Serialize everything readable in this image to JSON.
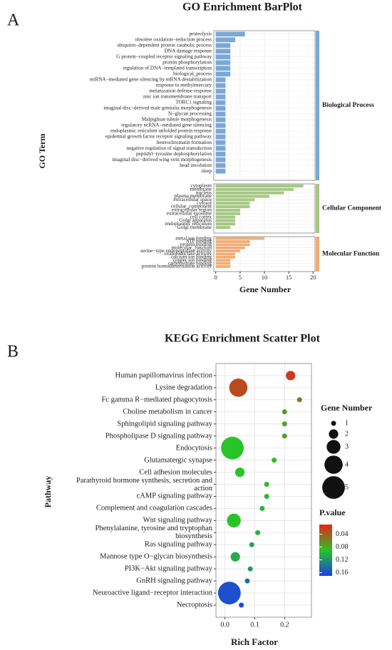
{
  "chart_data": [
    {
      "type": "bar",
      "orientation": "horizontal",
      "panel": "A",
      "title": "GO Enrichment BarPlot",
      "x_label": "Gene Number",
      "y_label": "GO Term",
      "xlim": [
        -0.4,
        20.4
      ],
      "xticks": [
        0,
        5,
        10,
        15,
        20
      ],
      "grid": true,
      "groups": [
        {
          "name": "Biological Process",
          "color": "#7ba7d7",
          "categories": [
            "proteolysis",
            "obsolete oxidation−reduction process",
            "ubiquitin−dependent protein catabolic process",
            "DNA damage response",
            "G protein−coupled receptor signaling pathway",
            "protein phosphorylation",
            "regulation of DNA−templated transcription",
            "biological_process",
            "miRNA−mediated gene silencing by mRNA destabilization",
            "response to methylmercury",
            "melanization defense response",
            "zinc ion transmembrane transport",
            "TORC1 signaling",
            "imaginal disc−derived male genitalia morphogenesis",
            "N−glycan processing",
            "Malpighian tubule morphogenesis",
            "regulatory ncRNA−mediated gene silencing",
            "endoplasmic reticulum unfolded protein response",
            "epidermal growth factor receptor signaling pathway",
            "heterochromatin formation",
            "negative regulation of signal transduction",
            "peptidyl−tyrosine dephosphorylation",
            "imaginal disc−derived wing vein morphogenesis",
            "head involution",
            "sleep"
          ],
          "values": [
            6,
            4,
            3,
            3,
            3,
            3,
            3,
            3,
            2,
            2,
            2,
            2,
            2,
            2,
            2,
            2,
            2,
            2,
            2,
            2,
            2,
            2,
            2,
            2,
            2
          ]
        },
        {
          "name": "Cellular Component",
          "color": "#a5c882",
          "categories": [
            "cytoplasm",
            "membrane",
            "nucleus",
            "plasma membrane",
            "extracellular space",
            "cytosol",
            "cellular_component",
            "extracellular region",
            "extracellular exosome",
            "cell cortex",
            "Golgi apparatus",
            "endoplasmic reticulum",
            "Golgi membrane"
          ],
          "values": [
            18,
            16,
            14,
            11,
            8,
            7,
            7,
            5,
            5,
            4,
            4,
            4,
            3
          ]
        },
        {
          "name": "Molecular Function",
          "color": "#f2ab72",
          "categories": [
            "metal ion binding",
            "ATP binding",
            "protein binding",
            "molecular_function",
            "serine−type endopeptidase activity",
            "oxidoreductase activity",
            "calcium ion binding",
            "copper ion binding",
            "carbohydrate binding",
            "protein homodimerization activity"
          ],
          "values": [
            10,
            7,
            7,
            6,
            5,
            4,
            4,
            3,
            3,
            3
          ]
        }
      ]
    },
    {
      "type": "scatter",
      "panel": "B",
      "title": "KEGG Enrichment Scatter Plot",
      "x_label": "Rich Factor",
      "y_label": "Pathway",
      "xlim": [
        -0.03,
        0.29
      ],
      "xticks": [
        {
          "value": 0,
          "label": "0.0"
        },
        0.1,
        0.2
      ],
      "grid": true,
      "categories": [
        "Human papillomavirus infection",
        "Lysine degradation",
        "Fc gamma R−mediated phagocytosis",
        "Choline metabolism in cancer",
        "Sphingolipid signaling pathway",
        "Phospholipase D signaling pathway",
        "Endocytosis",
        "Glutamatergic synapse",
        "Cell adhesion molecules",
        "Parathyroid hormone synthesis, secretion and action",
        "cAMP signaling pathway",
        "Complement and coagulation cascades",
        "Wnt signaling pathway",
        "Phenylalanine, tyrosine and tryptophan biosynthesis",
        "Ras signaling pathway",
        "Mannose type O−glycan biosynthesis",
        "PI3K−Akt signaling pathway",
        "GnRH signaling pathway",
        "Neuroactive ligand−receptor interaction",
        "Necroptosis"
      ],
      "x": [
        0.22,
        0.045,
        0.25,
        0.2,
        0.2,
        0.2,
        0.025,
        0.165,
        0.05,
        0.14,
        0.14,
        0.125,
        0.03,
        0.11,
        0.09,
        0.035,
        0.085,
        0.075,
        0.015,
        0.055
      ],
      "gene_number": [
        2,
        4,
        1,
        1,
        1,
        1,
        5,
        1,
        2,
        1,
        1,
        1,
        3,
        1,
        1,
        2,
        1,
        1,
        5,
        1
      ],
      "p_value": [
        0.02,
        0.03,
        0.05,
        0.07,
        0.075,
        0.075,
        0.09,
        0.085,
        0.09,
        0.095,
        0.095,
        0.1,
        0.09,
        0.1,
        0.11,
        0.105,
        0.12,
        0.14,
        0.16,
        0.165
      ],
      "size_legend": {
        "title": "Gene Number",
        "values": [
          1,
          2,
          3,
          4,
          5
        ]
      },
      "color_legend": {
        "title": "P.value",
        "lim": [
          0.01,
          0.17
        ],
        "ticks": [
          0.04,
          0.08,
          0.12,
          0.16
        ],
        "colors": [
          "#e8231b",
          "#27c327",
          "#1c3ee6"
        ]
      }
    }
  ]
}
